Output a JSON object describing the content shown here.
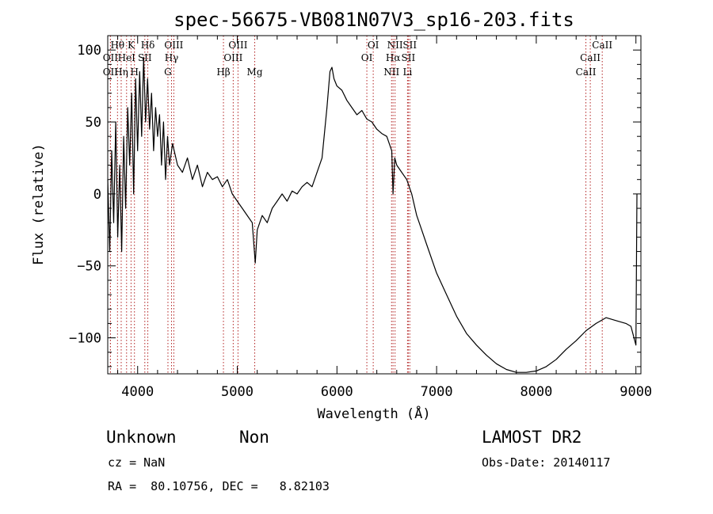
{
  "chart_data": {
    "type": "line",
    "title": "spec-56675-VB081N07V3_sp16-203.fits",
    "xlabel": "Wavelength (Å)",
    "ylabel": "Flux (relative)",
    "xlim": [
      3700,
      9050
    ],
    "ylim": [
      -125,
      110
    ],
    "x_ticks": [
      4000,
      5000,
      6000,
      7000,
      8000,
      9000
    ],
    "y_ticks": [
      100,
      50,
      0,
      -50,
      -100
    ],
    "grid": false,
    "series": [
      {
        "color": "#000000",
        "points": [
          [
            3700,
            10
          ],
          [
            3720,
            -40
          ],
          [
            3740,
            30
          ],
          [
            3760,
            -20
          ],
          [
            3780,
            50
          ],
          [
            3800,
            -30
          ],
          [
            3820,
            20
          ],
          [
            3840,
            -40
          ],
          [
            3860,
            40
          ],
          [
            3880,
            -10
          ],
          [
            3900,
            60
          ],
          [
            3920,
            20
          ],
          [
            3940,
            70
          ],
          [
            3960,
            0
          ],
          [
            3980,
            80
          ],
          [
            4000,
            30
          ],
          [
            4020,
            85
          ],
          [
            4040,
            40
          ],
          [
            4060,
            95
          ],
          [
            4080,
            50
          ],
          [
            4100,
            80
          ],
          [
            4120,
            45
          ],
          [
            4140,
            70
          ],
          [
            4160,
            30
          ],
          [
            4180,
            60
          ],
          [
            4200,
            40
          ],
          [
            4220,
            55
          ],
          [
            4240,
            20
          ],
          [
            4260,
            50
          ],
          [
            4280,
            10
          ],
          [
            4300,
            40
          ],
          [
            4320,
            20
          ],
          [
            4350,
            35
          ],
          [
            4400,
            20
          ],
          [
            4450,
            15
          ],
          [
            4500,
            25
          ],
          [
            4550,
            10
          ],
          [
            4600,
            20
          ],
          [
            4650,
            5
          ],
          [
            4700,
            15
          ],
          [
            4750,
            10
          ],
          [
            4800,
            12
          ],
          [
            4850,
            5
          ],
          [
            4900,
            10
          ],
          [
            4950,
            0
          ],
          [
            5000,
            -5
          ],
          [
            5050,
            -10
          ],
          [
            5100,
            -15
          ],
          [
            5150,
            -20
          ],
          [
            5180,
            -48
          ],
          [
            5200,
            -25
          ],
          [
            5250,
            -15
          ],
          [
            5300,
            -20
          ],
          [
            5350,
            -10
          ],
          [
            5400,
            -5
          ],
          [
            5450,
            0
          ],
          [
            5500,
            -5
          ],
          [
            5550,
            2
          ],
          [
            5600,
            0
          ],
          [
            5650,
            5
          ],
          [
            5700,
            8
          ],
          [
            5750,
            5
          ],
          [
            5800,
            15
          ],
          [
            5850,
            25
          ],
          [
            5900,
            60
          ],
          [
            5930,
            85
          ],
          [
            5950,
            88
          ],
          [
            5970,
            80
          ],
          [
            6000,
            75
          ],
          [
            6050,
            72
          ],
          [
            6100,
            65
          ],
          [
            6150,
            60
          ],
          [
            6200,
            55
          ],
          [
            6250,
            58
          ],
          [
            6300,
            52
          ],
          [
            6350,
            50
          ],
          [
            6400,
            45
          ],
          [
            6450,
            42
          ],
          [
            6500,
            40
          ],
          [
            6550,
            30
          ],
          [
            6563,
            0
          ],
          [
            6580,
            25
          ],
          [
            6600,
            20
          ],
          [
            6650,
            15
          ],
          [
            6700,
            10
          ],
          [
            6750,
            0
          ],
          [
            6800,
            -15
          ],
          [
            6850,
            -25
          ],
          [
            6900,
            -35
          ],
          [
            7000,
            -55
          ],
          [
            7100,
            -70
          ],
          [
            7200,
            -85
          ],
          [
            7300,
            -97
          ],
          [
            7400,
            -105
          ],
          [
            7500,
            -112
          ],
          [
            7600,
            -118
          ],
          [
            7700,
            -122
          ],
          [
            7800,
            -124
          ],
          [
            7900,
            -124
          ],
          [
            8000,
            -123
          ],
          [
            8100,
            -120
          ],
          [
            8200,
            -115
          ],
          [
            8300,
            -108
          ],
          [
            8400,
            -102
          ],
          [
            8500,
            -95
          ],
          [
            8600,
            -90
          ],
          [
            8700,
            -86
          ],
          [
            8800,
            -88
          ],
          [
            8900,
            -90
          ],
          [
            8950,
            -92
          ],
          [
            9000,
            -105
          ],
          [
            9010,
            0
          ]
        ]
      }
    ],
    "lines": [
      {
        "label": "Hθ",
        "x": 3798,
        "row": 1
      },
      {
        "label": "OII",
        "x": 3727,
        "row": 2
      },
      {
        "label": "OII",
        "x": 3727,
        "row": 3
      },
      {
        "label": "HeI",
        "x": 3889,
        "row": 2
      },
      {
        "label": "Hη",
        "x": 3835,
        "row": 3
      },
      {
        "label": "K",
        "x": 3934,
        "row": 1
      },
      {
        "label": "SII",
        "x": 4072,
        "row": 2
      },
      {
        "label": "H",
        "x": 3968,
        "row": 3
      },
      {
        "label": "Hδ",
        "x": 4102,
        "row": 1
      },
      {
        "label": "OIII",
        "x": 4363,
        "row": 1
      },
      {
        "label": "Hγ",
        "x": 4340,
        "row": 2
      },
      {
        "label": "G",
        "x": 4304,
        "row": 3
      },
      {
        "label": "Hβ",
        "x": 4861,
        "row": 3
      },
      {
        "label": "OIII",
        "x": 5007,
        "row": 1
      },
      {
        "label": "OIII",
        "x": 4959,
        "row": 2
      },
      {
        "label": "Mg",
        "x": 5175,
        "row": 3
      },
      {
        "label": "OI",
        "x": 6364,
        "row": 1
      },
      {
        "label": "OI",
        "x": 6300,
        "row": 2
      },
      {
        "label": "NII",
        "x": 6583,
        "row": 1
      },
      {
        "label": "Hα",
        "x": 6563,
        "row": 2
      },
      {
        "label": "NII",
        "x": 6548,
        "row": 3
      },
      {
        "label": "SII",
        "x": 6731,
        "row": 1
      },
      {
        "label": "SII",
        "x": 6716,
        "row": 2
      },
      {
        "label": "Li",
        "x": 6708,
        "row": 3
      },
      {
        "label": "CaII",
        "x": 8662,
        "row": 1
      },
      {
        "label": "CaII",
        "x": 8542,
        "row": 2
      },
      {
        "label": "CaII",
        "x": 8498,
        "row": 3
      }
    ],
    "line_color": "#b22222"
  },
  "info": {
    "object_class": "Unknown",
    "subclass": "Non",
    "cz": "cz = NaN",
    "coords": "RA =  80.10756, DEC =   8.82103",
    "survey": "LAMOST DR2",
    "obs_date": "Obs-Date: 20140117"
  }
}
